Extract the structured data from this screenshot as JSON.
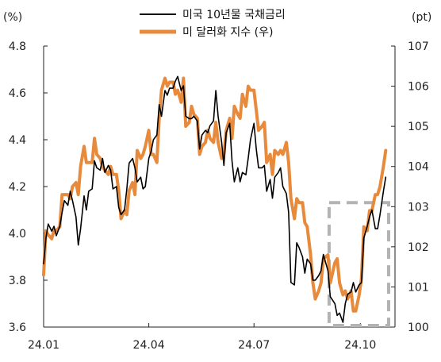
{
  "chart_data": {
    "type": "line",
    "title": "",
    "left_axis": {
      "unit": "(%)",
      "ylim": [
        3.6,
        4.8
      ],
      "ticks": [
        "3.6",
        "3.8",
        "4.0",
        "4.2",
        "4.4",
        "4.6",
        "4.8"
      ]
    },
    "right_axis": {
      "unit": "(pt)",
      "ylim": [
        100,
        107
      ],
      "ticks": [
        "100",
        "101",
        "102",
        "103",
        "104",
        "105",
        "106",
        "107"
      ]
    },
    "x_ticks": [
      "24.01",
      "24.04",
      "24.07",
      "24.10"
    ],
    "x_tick_dates": [
      "2024-01-01",
      "2024-04-01",
      "2024-07-01",
      "2024-10-01"
    ],
    "x_range": [
      "2024-01-01",
      "2024-10-31"
    ],
    "grid": false,
    "legend_position": "top-center",
    "highlight_box": {
      "x": [
        "2024-09-04",
        "2024-10-31"
      ],
      "y_right": [
        100,
        103.1
      ],
      "style": "dashed",
      "color": "#b3b3b3"
    },
    "series": [
      {
        "name": "미국 10년물 국채금리",
        "axis": "left",
        "color": "#000000",
        "points": [
          [
            "2024-01-01",
            3.87
          ],
          [
            "2024-01-03",
            3.98
          ],
          [
            "2024-01-05",
            4.04
          ],
          [
            "2024-01-08",
            4.01
          ],
          [
            "2024-01-10",
            4.03
          ],
          [
            "2024-01-12",
            3.99
          ],
          [
            "2024-01-15",
            4.03
          ],
          [
            "2024-01-17",
            4.09
          ],
          [
            "2024-01-19",
            4.14
          ],
          [
            "2024-01-22",
            4.12
          ],
          [
            "2024-01-24",
            4.18
          ],
          [
            "2024-01-26",
            4.14
          ],
          [
            "2024-01-29",
            4.07
          ],
          [
            "2024-01-31",
            3.95
          ],
          [
            "2024-02-02",
            4.02
          ],
          [
            "2024-02-05",
            4.16
          ],
          [
            "2024-02-07",
            4.1
          ],
          [
            "2024-02-09",
            4.18
          ],
          [
            "2024-02-12",
            4.19
          ],
          [
            "2024-02-14",
            4.31
          ],
          [
            "2024-02-16",
            4.28
          ],
          [
            "2024-02-19",
            4.27
          ],
          [
            "2024-02-21",
            4.32
          ],
          [
            "2024-02-23",
            4.26
          ],
          [
            "2024-02-26",
            4.29
          ],
          [
            "2024-02-28",
            4.27
          ],
          [
            "2024-03-01",
            4.19
          ],
          [
            "2024-03-04",
            4.2
          ],
          [
            "2024-03-06",
            4.11
          ],
          [
            "2024-03-08",
            4.08
          ],
          [
            "2024-03-11",
            4.1
          ],
          [
            "2024-03-13",
            4.19
          ],
          [
            "2024-03-15",
            4.3
          ],
          [
            "2024-03-18",
            4.32
          ],
          [
            "2024-03-20",
            4.28
          ],
          [
            "2024-03-22",
            4.22
          ],
          [
            "2024-03-25",
            4.24
          ],
          [
            "2024-03-27",
            4.19
          ],
          [
            "2024-03-29",
            4.2
          ],
          [
            "2024-04-01",
            4.32
          ],
          [
            "2024-04-03",
            4.35
          ],
          [
            "2024-04-05",
            4.4
          ],
          [
            "2024-04-08",
            4.42
          ],
          [
            "2024-04-10",
            4.55
          ],
          [
            "2024-04-12",
            4.5
          ],
          [
            "2024-04-15",
            4.61
          ],
          [
            "2024-04-17",
            4.59
          ],
          [
            "2024-04-19",
            4.62
          ],
          [
            "2024-04-22",
            4.62
          ],
          [
            "2024-04-24",
            4.65
          ],
          [
            "2024-04-26",
            4.67
          ],
          [
            "2024-04-29",
            4.61
          ],
          [
            "2024-05-01",
            4.63
          ],
          [
            "2024-05-03",
            4.5
          ],
          [
            "2024-05-06",
            4.49
          ],
          [
            "2024-05-08",
            4.49
          ],
          [
            "2024-05-10",
            4.5
          ],
          [
            "2024-05-13",
            4.48
          ],
          [
            "2024-05-15",
            4.36
          ],
          [
            "2024-05-17",
            4.42
          ],
          [
            "2024-05-20",
            4.44
          ],
          [
            "2024-05-22",
            4.43
          ],
          [
            "2024-05-24",
            4.46
          ],
          [
            "2024-05-27",
            4.48
          ],
          [
            "2024-05-29",
            4.61
          ],
          [
            "2024-05-31",
            4.5
          ],
          [
            "2024-06-03",
            4.39
          ],
          [
            "2024-06-05",
            4.29
          ],
          [
            "2024-06-07",
            4.43
          ],
          [
            "2024-06-10",
            4.47
          ],
          [
            "2024-06-12",
            4.31
          ],
          [
            "2024-06-14",
            4.22
          ],
          [
            "2024-06-17",
            4.28
          ],
          [
            "2024-06-19",
            4.22
          ],
          [
            "2024-06-21",
            4.26
          ],
          [
            "2024-06-24",
            4.25
          ],
          [
            "2024-06-26",
            4.32
          ],
          [
            "2024-06-28",
            4.4
          ],
          [
            "2024-07-01",
            4.47
          ],
          [
            "2024-07-03",
            4.36
          ],
          [
            "2024-07-05",
            4.28
          ],
          [
            "2024-07-08",
            4.28
          ],
          [
            "2024-07-10",
            4.29
          ],
          [
            "2024-07-12",
            4.18
          ],
          [
            "2024-07-15",
            4.23
          ],
          [
            "2024-07-17",
            4.15
          ],
          [
            "2024-07-19",
            4.24
          ],
          [
            "2024-07-22",
            4.26
          ],
          [
            "2024-07-24",
            4.28
          ],
          [
            "2024-07-26",
            4.2
          ],
          [
            "2024-07-29",
            4.17
          ],
          [
            "2024-07-31",
            4.09
          ],
          [
            "2024-08-02",
            3.79
          ],
          [
            "2024-08-05",
            3.78
          ],
          [
            "2024-08-07",
            3.96
          ],
          [
            "2024-08-09",
            3.94
          ],
          [
            "2024-08-12",
            3.9
          ],
          [
            "2024-08-14",
            3.83
          ],
          [
            "2024-08-16",
            3.89
          ],
          [
            "2024-08-19",
            3.87
          ],
          [
            "2024-08-21",
            3.8
          ],
          [
            "2024-08-23",
            3.8
          ],
          [
            "2024-08-26",
            3.82
          ],
          [
            "2024-08-28",
            3.84
          ],
          [
            "2024-08-30",
            3.91
          ],
          [
            "2024-09-03",
            3.84
          ],
          [
            "2024-09-05",
            3.73
          ],
          [
            "2024-09-09",
            3.7
          ],
          [
            "2024-09-11",
            3.65
          ],
          [
            "2024-09-13",
            3.66
          ],
          [
            "2024-09-16",
            3.62
          ],
          [
            "2024-09-18",
            3.7
          ],
          [
            "2024-09-20",
            3.74
          ],
          [
            "2024-09-23",
            3.75
          ],
          [
            "2024-09-25",
            3.79
          ],
          [
            "2024-09-27",
            3.75
          ],
          [
            "2024-09-30",
            3.78
          ],
          [
            "2024-10-02",
            3.79
          ],
          [
            "2024-10-04",
            3.98
          ],
          [
            "2024-10-07",
            4.03
          ],
          [
            "2024-10-09",
            4.07
          ],
          [
            "2024-10-11",
            4.1
          ],
          [
            "2024-10-14",
            4.02
          ],
          [
            "2024-10-16",
            4.02
          ],
          [
            "2024-10-18",
            4.08
          ],
          [
            "2024-10-21",
            4.18
          ],
          [
            "2024-10-23",
            4.24
          ]
        ]
      },
      {
        "name": "미 달러화 지수 (우)",
        "axis": "right",
        "color": "#e88a3c",
        "points": [
          [
            "2024-01-01",
            101.3
          ],
          [
            "2024-01-03",
            102.4
          ],
          [
            "2024-01-05",
            102.3
          ],
          [
            "2024-01-08",
            102.2
          ],
          [
            "2024-01-10",
            102.4
          ],
          [
            "2024-01-12",
            102.4
          ],
          [
            "2024-01-15",
            102.5
          ],
          [
            "2024-01-17",
            103.3
          ],
          [
            "2024-01-19",
            103.3
          ],
          [
            "2024-01-22",
            103.3
          ],
          [
            "2024-01-24",
            103.2
          ],
          [
            "2024-01-26",
            103.5
          ],
          [
            "2024-01-29",
            103.6
          ],
          [
            "2024-01-31",
            103.3
          ],
          [
            "2024-02-02",
            104.0
          ],
          [
            "2024-02-05",
            104.5
          ],
          [
            "2024-02-07",
            104.1
          ],
          [
            "2024-02-09",
            104.1
          ],
          [
            "2024-02-12",
            104.1
          ],
          [
            "2024-02-14",
            104.7
          ],
          [
            "2024-02-16",
            104.3
          ],
          [
            "2024-02-19",
            104.2
          ],
          [
            "2024-02-21",
            104.0
          ],
          [
            "2024-02-23",
            103.9
          ],
          [
            "2024-02-26",
            103.8
          ],
          [
            "2024-02-28",
            104.0
          ],
          [
            "2024-03-01",
            103.8
          ],
          [
            "2024-03-04",
            103.8
          ],
          [
            "2024-03-06",
            103.4
          ],
          [
            "2024-03-08",
            102.7
          ],
          [
            "2024-03-11",
            102.9
          ],
          [
            "2024-03-13",
            102.8
          ],
          [
            "2024-03-15",
            103.4
          ],
          [
            "2024-03-18",
            103.6
          ],
          [
            "2024-03-20",
            103.3
          ],
          [
            "2024-03-22",
            104.4
          ],
          [
            "2024-03-25",
            104.2
          ],
          [
            "2024-03-27",
            104.3
          ],
          [
            "2024-03-29",
            104.5
          ],
          [
            "2024-04-01",
            104.9
          ],
          [
            "2024-04-03",
            104.3
          ],
          [
            "2024-04-05",
            104.3
          ],
          [
            "2024-04-08",
            104.1
          ],
          [
            "2024-04-10",
            105.2
          ],
          [
            "2024-04-12",
            105.9
          ],
          [
            "2024-04-15",
            106.2
          ],
          [
            "2024-04-17",
            106.0
          ],
          [
            "2024-04-19",
            106.1
          ],
          [
            "2024-04-22",
            106.1
          ],
          [
            "2024-04-24",
            105.8
          ],
          [
            "2024-04-26",
            105.9
          ],
          [
            "2024-04-29",
            105.6
          ],
          [
            "2024-05-01",
            106.2
          ],
          [
            "2024-05-03",
            105.0
          ],
          [
            "2024-05-06",
            105.1
          ],
          [
            "2024-05-08",
            105.5
          ],
          [
            "2024-05-10",
            105.3
          ],
          [
            "2024-05-13",
            105.2
          ],
          [
            "2024-05-15",
            104.3
          ],
          [
            "2024-05-17",
            104.5
          ],
          [
            "2024-05-20",
            104.6
          ],
          [
            "2024-05-22",
            104.9
          ],
          [
            "2024-05-24",
            104.7
          ],
          [
            "2024-05-27",
            104.6
          ],
          [
            "2024-05-29",
            105.1
          ],
          [
            "2024-05-31",
            104.6
          ],
          [
            "2024-06-03",
            104.2
          ],
          [
            "2024-06-05",
            104.3
          ],
          [
            "2024-06-07",
            104.9
          ],
          [
            "2024-06-10",
            105.2
          ],
          [
            "2024-06-12",
            104.7
          ],
          [
            "2024-06-14",
            105.5
          ],
          [
            "2024-06-17",
            105.3
          ],
          [
            "2024-06-19",
            105.2
          ],
          [
            "2024-06-21",
            105.8
          ],
          [
            "2024-06-24",
            105.5
          ],
          [
            "2024-06-26",
            106.0
          ],
          [
            "2024-06-28",
            105.9
          ],
          [
            "2024-07-01",
            105.9
          ],
          [
            "2024-07-03",
            105.4
          ],
          [
            "2024-07-05",
            104.9
          ],
          [
            "2024-07-08",
            105.0
          ],
          [
            "2024-07-10",
            105.1
          ],
          [
            "2024-07-12",
            104.1
          ],
          [
            "2024-07-15",
            104.3
          ],
          [
            "2024-07-17",
            103.8
          ],
          [
            "2024-07-19",
            104.4
          ],
          [
            "2024-07-22",
            104.3
          ],
          [
            "2024-07-24",
            104.4
          ],
          [
            "2024-07-26",
            104.3
          ],
          [
            "2024-07-29",
            104.6
          ],
          [
            "2024-07-31",
            104.1
          ],
          [
            "2024-08-02",
            103.2
          ],
          [
            "2024-08-05",
            102.7
          ],
          [
            "2024-08-07",
            103.2
          ],
          [
            "2024-08-09",
            103.1
          ],
          [
            "2024-08-12",
            103.1
          ],
          [
            "2024-08-14",
            102.6
          ],
          [
            "2024-08-16",
            102.5
          ],
          [
            "2024-08-19",
            101.8
          ],
          [
            "2024-08-21",
            101.1
          ],
          [
            "2024-08-23",
            100.7
          ],
          [
            "2024-08-26",
            100.9
          ],
          [
            "2024-08-28",
            101.1
          ],
          [
            "2024-08-30",
            101.7
          ],
          [
            "2024-09-03",
            101.8
          ],
          [
            "2024-09-05",
            101.1
          ],
          [
            "2024-09-09",
            101.6
          ],
          [
            "2024-09-11",
            101.7
          ],
          [
            "2024-09-13",
            101.1
          ],
          [
            "2024-09-16",
            100.8
          ],
          [
            "2024-09-18",
            100.9
          ],
          [
            "2024-09-20",
            100.7
          ],
          [
            "2024-09-23",
            100.9
          ],
          [
            "2024-09-25",
            100.4
          ],
          [
            "2024-09-27",
            100.4
          ],
          [
            "2024-09-30",
            100.8
          ],
          [
            "2024-10-02",
            101.2
          ],
          [
            "2024-10-04",
            102.5
          ],
          [
            "2024-10-07",
            102.4
          ],
          [
            "2024-10-09",
            102.9
          ],
          [
            "2024-10-11",
            102.9
          ],
          [
            "2024-10-14",
            103.3
          ],
          [
            "2024-10-16",
            103.3
          ],
          [
            "2024-10-18",
            103.5
          ],
          [
            "2024-10-21",
            104.0
          ],
          [
            "2024-10-23",
            104.4
          ]
        ]
      }
    ]
  }
}
